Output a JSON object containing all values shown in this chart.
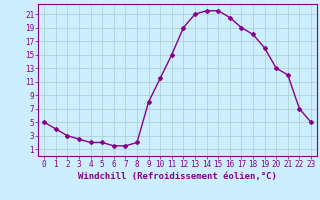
{
  "x": [
    0,
    1,
    2,
    3,
    4,
    5,
    6,
    7,
    8,
    9,
    10,
    11,
    12,
    13,
    14,
    15,
    16,
    17,
    18,
    19,
    20,
    21,
    22,
    23
  ],
  "y": [
    5,
    4,
    3,
    2.5,
    2,
    2,
    1.5,
    1.5,
    2,
    8,
    11.5,
    15,
    19,
    21,
    21.5,
    21.5,
    20.5,
    19,
    18,
    16,
    13,
    12,
    7,
    5
  ],
  "line_color": "#880088",
  "marker": "D",
  "marker_size": 2,
  "bg_color": "#cceeff",
  "grid_color": "#aacccc",
  "xlabel": "Windchill (Refroidissement éolien,°C)",
  "xlabel_fontsize": 6.5,
  "ylabel_ticks": [
    1,
    3,
    5,
    7,
    9,
    11,
    13,
    15,
    17,
    19,
    21
  ],
  "xlim": [
    -0.5,
    23.5
  ],
  "ylim": [
    0,
    22.5
  ],
  "tick_fontsize": 5.5,
  "line_width": 1.0
}
